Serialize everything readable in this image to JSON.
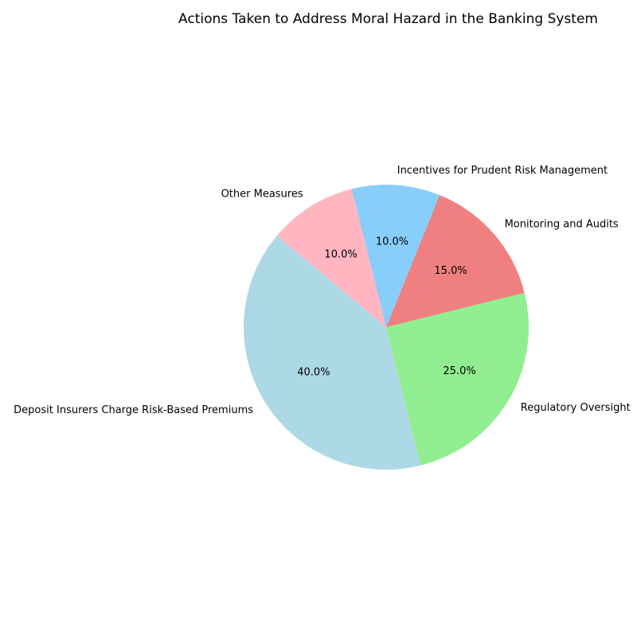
{
  "chart_data": {
    "type": "pie",
    "title": "Actions Taken to Address Moral Hazard in the Banking System",
    "slices": [
      {
        "label": "Deposit Insurers Charge Risk-Based Premiums",
        "value": 40,
        "pct_label": "40.0%",
        "color": "#ADD8E6"
      },
      {
        "label": "Regulatory Oversight",
        "value": 25,
        "pct_label": "25.0%",
        "color": "#90EE90"
      },
      {
        "label": "Monitoring and Audits",
        "value": 15,
        "pct_label": "15.0%",
        "color": "#F08080"
      },
      {
        "label": "Incentives for Prudent Risk Management",
        "value": 10,
        "pct_label": "10.0%",
        "color": "#87CEFA"
      },
      {
        "label": "Other Measures",
        "value": 10,
        "pct_label": "10.0%",
        "color": "#FFB6C1"
      }
    ],
    "start_angle_deg": 140,
    "direction": "counterclockwise",
    "legend": "none"
  }
}
